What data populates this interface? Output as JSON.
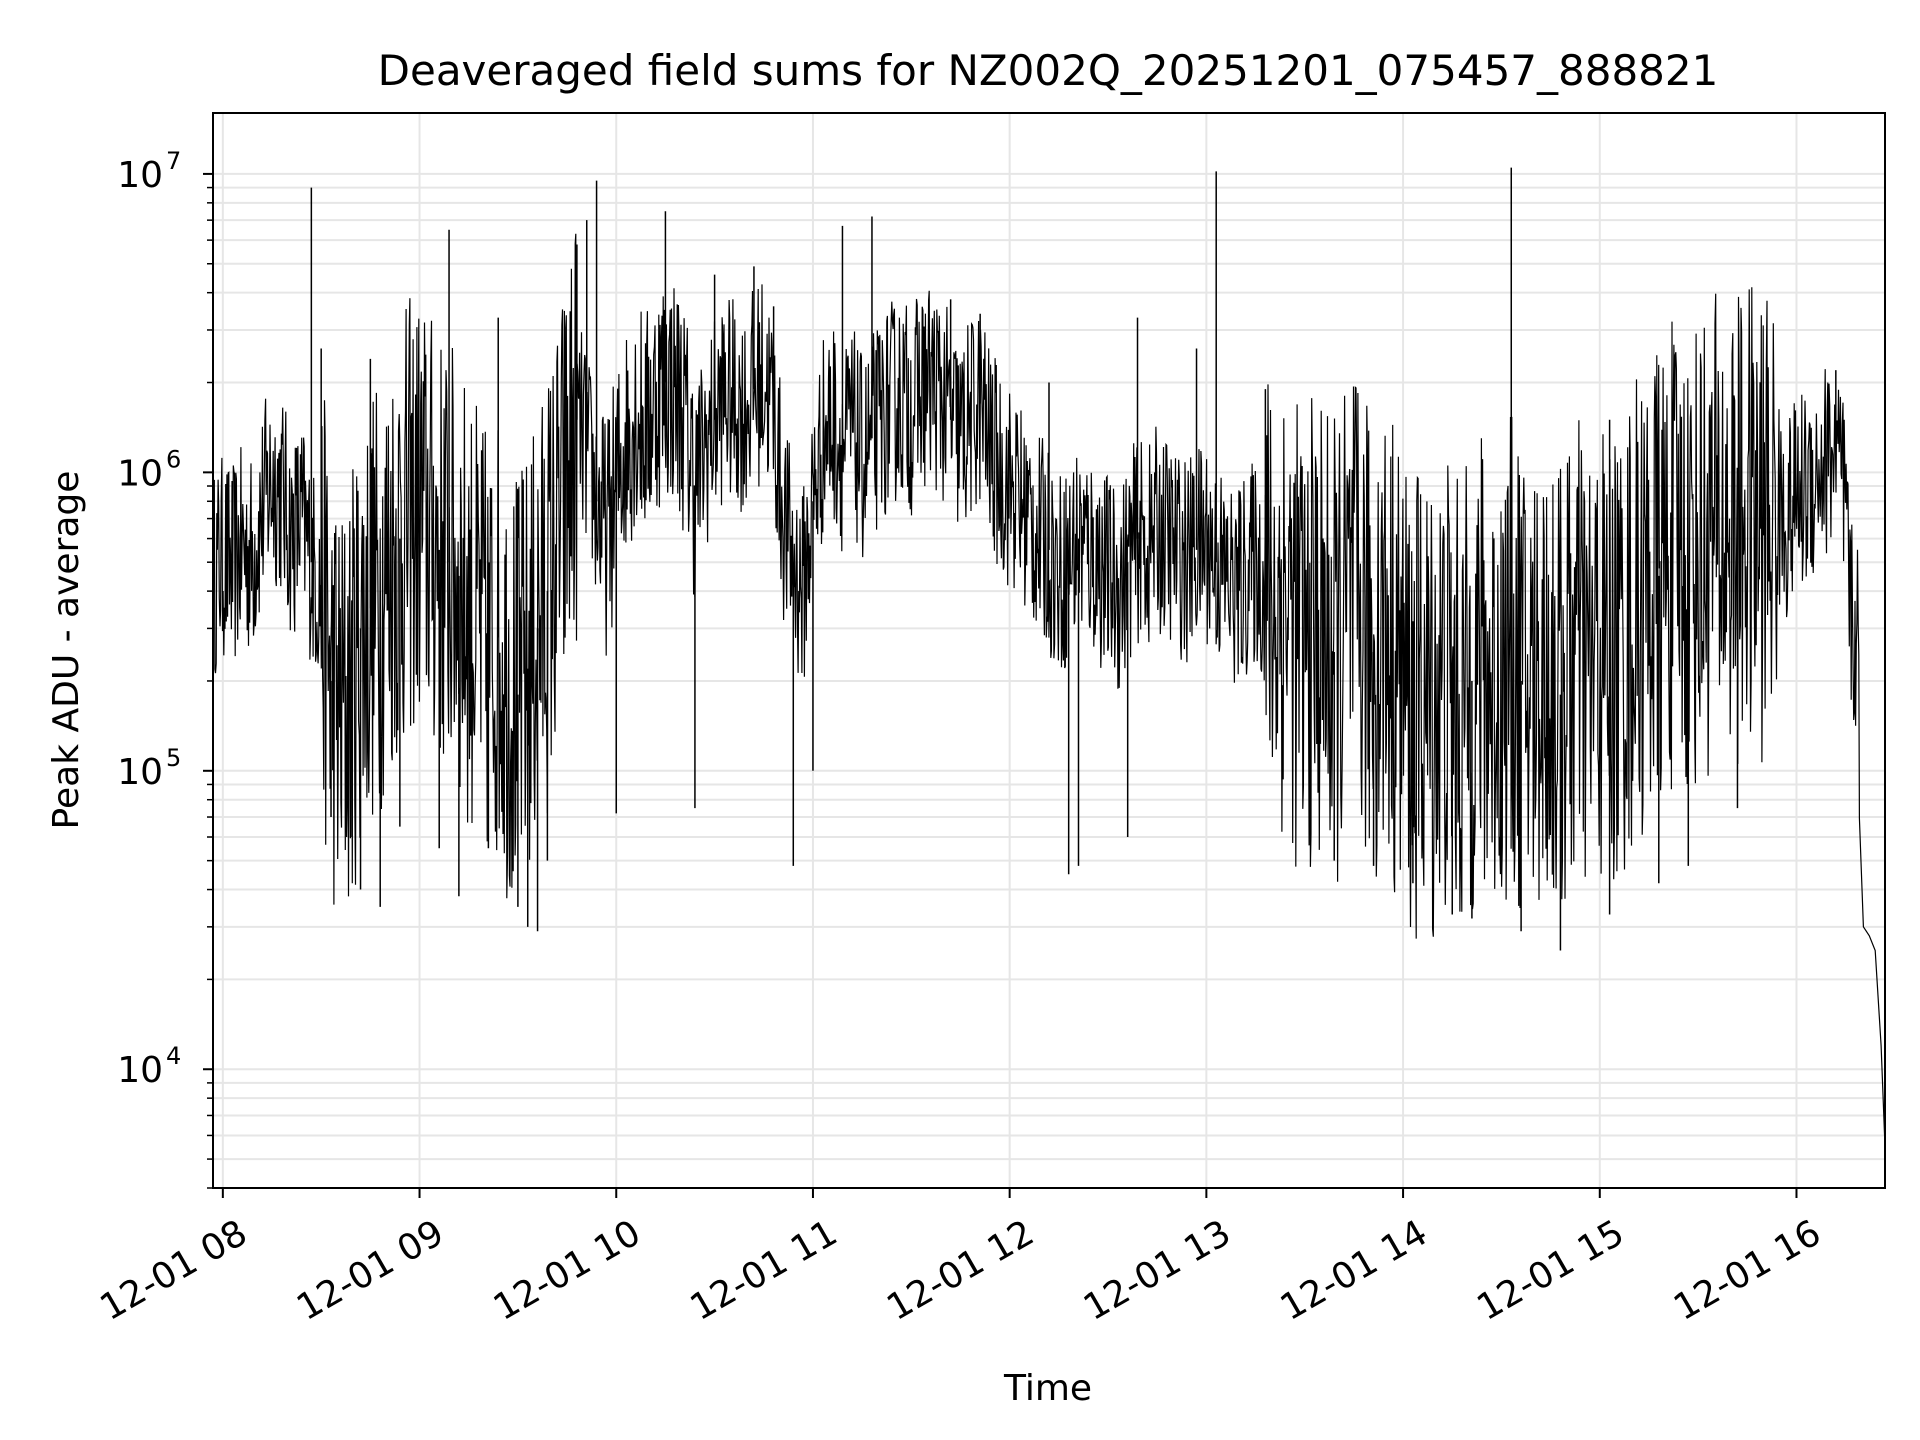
{
  "chart_data": {
    "type": "line",
    "title": "Deaveraged field sums for NZ002Q_20251201_075457_888821",
    "xlabel": "Time",
    "ylabel": "Peak ADU - average",
    "yscale": "log",
    "xlim": [
      7.95,
      16.45
    ],
    "ylim": [
      4000,
      16000000
    ],
    "grid": true,
    "line_color": "#000000",
    "grid_color": "#e6e6e6",
    "x_ticks": [
      {
        "value": 8,
        "label": "12-01 08"
      },
      {
        "value": 9,
        "label": "12-01 09"
      },
      {
        "value": 10,
        "label": "12-01 10"
      },
      {
        "value": 11,
        "label": "12-01 11"
      },
      {
        "value": 12,
        "label": "12-01 12"
      },
      {
        "value": 13,
        "label": "12-01 13"
      },
      {
        "value": 14,
        "label": "12-01 14"
      },
      {
        "value": 15,
        "label": "12-01 15"
      },
      {
        "value": 16,
        "label": "12-01 16"
      }
    ],
    "y_ticks": [
      {
        "value": 10000,
        "base": "10",
        "exp": "4"
      },
      {
        "value": 100000,
        "base": "10",
        "exp": "5"
      },
      {
        "value": 1000000,
        "base": "10",
        "exp": "6"
      },
      {
        "value": 10000000,
        "base": "10",
        "exp": "7"
      }
    ],
    "series": [
      {
        "points": [
          [
            7.95,
            450000
          ],
          [
            8.0,
            520000
          ],
          [
            8.05,
            480000
          ],
          [
            8.1,
            560000
          ],
          [
            8.15,
            520000
          ],
          [
            8.2,
            750000
          ],
          [
            8.25,
            950000
          ],
          [
            8.3,
            850000
          ],
          [
            8.35,
            600000
          ],
          [
            8.4,
            700000
          ],
          [
            8.45,
            500000
          ],
          [
            8.5,
            400000
          ],
          [
            8.55,
            200000
          ],
          [
            8.6,
            150000
          ],
          [
            8.65,
            180000
          ],
          [
            8.7,
            300000
          ],
          [
            8.75,
            350000
          ],
          [
            8.8,
            400000
          ],
          [
            8.85,
            500000
          ],
          [
            8.9,
            600000
          ],
          [
            8.95,
            700000
          ],
          [
            9.0,
            750000
          ],
          [
            9.05,
            650000
          ],
          [
            9.1,
            550000
          ],
          [
            9.15,
            500000
          ],
          [
            9.2,
            450000
          ],
          [
            9.25,
            350000
          ],
          [
            9.3,
            300000
          ],
          [
            9.35,
            250000
          ],
          [
            9.4,
            280000
          ],
          [
            9.45,
            200000
          ],
          [
            9.5,
            180000
          ],
          [
            9.55,
            220000
          ],
          [
            9.6,
            300000
          ],
          [
            9.65,
            400000
          ],
          [
            9.7,
            600000
          ],
          [
            9.75,
            900000
          ],
          [
            9.8,
            1500000
          ],
          [
            9.85,
            1200000
          ],
          [
            9.9,
            800000
          ],
          [
            9.95,
            600000
          ],
          [
            10.0,
            900000
          ],
          [
            10.05,
            1300000
          ],
          [
            10.1,
            1600000
          ],
          [
            10.15,
            1400000
          ],
          [
            10.2,
            1800000
          ],
          [
            10.25,
            2000000
          ],
          [
            10.3,
            1900000
          ],
          [
            10.35,
            1500000
          ],
          [
            10.4,
            900000
          ],
          [
            10.45,
            1200000
          ],
          [
            10.5,
            1500000
          ],
          [
            10.55,
            1800000
          ],
          [
            10.6,
            1700000
          ],
          [
            10.65,
            1600000
          ],
          [
            10.7,
            1900000
          ],
          [
            10.75,
            2100000
          ],
          [
            10.8,
            1600000
          ],
          [
            10.85,
            700000
          ],
          [
            10.9,
            500000
          ],
          [
            10.95,
            400000
          ],
          [
            11.0,
            800000
          ],
          [
            11.05,
            1300000
          ],
          [
            11.1,
            1500000
          ],
          [
            11.15,
            1200000
          ],
          [
            11.2,
            1400000
          ],
          [
            11.25,
            1100000
          ],
          [
            11.3,
            1300000
          ],
          [
            11.35,
            1500000
          ],
          [
            11.4,
            1700000
          ],
          [
            11.45,
            1800000
          ],
          [
            11.5,
            1600000
          ],
          [
            11.55,
            1900000
          ],
          [
            11.6,
            2000000
          ],
          [
            11.65,
            1800000
          ],
          [
            11.7,
            1500000
          ],
          [
            11.75,
            1300000
          ],
          [
            11.8,
            1500000
          ],
          [
            11.85,
            1700000
          ],
          [
            11.9,
            1200000
          ],
          [
            11.95,
            1000000
          ],
          [
            12.0,
            900000
          ],
          [
            12.05,
            800000
          ],
          [
            12.1,
            700000
          ],
          [
            12.15,
            600000
          ],
          [
            12.2,
            550000
          ],
          [
            12.25,
            450000
          ],
          [
            12.3,
            500000
          ],
          [
            12.35,
            600000
          ],
          [
            12.4,
            550000
          ],
          [
            12.45,
            500000
          ],
          [
            12.5,
            450000
          ],
          [
            12.55,
            400000
          ],
          [
            12.6,
            500000
          ],
          [
            12.65,
            600000
          ],
          [
            12.7,
            550000
          ],
          [
            12.75,
            650000
          ],
          [
            12.8,
            600000
          ],
          [
            12.85,
            550000
          ],
          [
            12.9,
            500000
          ],
          [
            12.95,
            550000
          ],
          [
            13.0,
            600000
          ],
          [
            13.05,
            500000
          ],
          [
            13.1,
            450000
          ],
          [
            13.15,
            400000
          ],
          [
            13.2,
            450000
          ],
          [
            13.25,
            500000
          ],
          [
            13.3,
            400000
          ],
          [
            13.35,
            350000
          ],
          [
            13.4,
            400000
          ],
          [
            13.45,
            300000
          ],
          [
            13.5,
            250000
          ],
          [
            13.55,
            300000
          ],
          [
            13.6,
            280000
          ],
          [
            13.65,
            250000
          ],
          [
            13.7,
            300000
          ],
          [
            13.75,
            350000
          ],
          [
            13.8,
            300000
          ],
          [
            13.85,
            250000
          ],
          [
            13.9,
            300000
          ],
          [
            13.95,
            250000
          ],
          [
            14.0,
            200000
          ],
          [
            14.05,
            150000
          ],
          [
            14.1,
            180000
          ],
          [
            14.15,
            160000
          ],
          [
            14.2,
            200000
          ],
          [
            14.25,
            180000
          ],
          [
            14.3,
            150000
          ],
          [
            14.35,
            200000
          ],
          [
            14.4,
            220000
          ],
          [
            14.45,
            180000
          ],
          [
            14.5,
            200000
          ],
          [
            14.55,
            250000
          ],
          [
            14.6,
            200000
          ],
          [
            14.65,
            180000
          ],
          [
            14.7,
            220000
          ],
          [
            14.75,
            200000
          ],
          [
            14.8,
            180000
          ],
          [
            14.85,
            220000
          ],
          [
            14.9,
            250000
          ],
          [
            14.95,
            200000
          ],
          [
            15.0,
            250000
          ],
          [
            15.05,
            220000
          ],
          [
            15.1,
            250000
          ],
          [
            15.15,
            300000
          ],
          [
            15.2,
            350000
          ],
          [
            15.25,
            400000
          ],
          [
            15.3,
            450000
          ],
          [
            15.35,
            500000
          ],
          [
            15.4,
            550000
          ],
          [
            15.45,
            500000
          ],
          [
            15.5,
            550000
          ],
          [
            15.55,
            600000
          ],
          [
            15.6,
            650000
          ],
          [
            15.65,
            600000
          ],
          [
            15.7,
            650000
          ],
          [
            15.75,
            700000
          ],
          [
            15.8,
            650000
          ],
          [
            15.85,
            700000
          ],
          [
            15.9,
            750000
          ],
          [
            15.95,
            700000
          ],
          [
            16.0,
            800000
          ],
          [
            16.05,
            900000
          ],
          [
            16.1,
            1000000
          ],
          [
            16.15,
            1100000
          ],
          [
            16.2,
            1200000
          ],
          [
            16.25,
            700000
          ],
          [
            16.28,
            300000
          ],
          [
            16.31,
            280000
          ],
          [
            16.34,
            30000
          ],
          [
            16.37,
            28000
          ],
          [
            16.4,
            25000
          ],
          [
            16.43,
            12000
          ],
          [
            16.45,
            5500
          ]
        ]
      }
    ],
    "spikes": [
      [
        8.45,
        9000000
      ],
      [
        8.5,
        2600000
      ],
      [
        8.75,
        2400000
      ],
      [
        9.15,
        6500000
      ],
      [
        9.4,
        3300000
      ],
      [
        9.8,
        5800000
      ],
      [
        9.85,
        7000000
      ],
      [
        9.9,
        9500000
      ],
      [
        10.25,
        7500000
      ],
      [
        10.5,
        4600000
      ],
      [
        10.7,
        4900000
      ],
      [
        10.8,
        3600000
      ],
      [
        11.15,
        6700000
      ],
      [
        11.3,
        7200000
      ],
      [
        11.7,
        3800000
      ],
      [
        11.85,
        3400000
      ],
      [
        12.2,
        2000000
      ],
      [
        12.65,
        3300000
      ],
      [
        12.95,
        2600000
      ],
      [
        13.05,
        10200000
      ],
      [
        13.3,
        1900000
      ],
      [
        14.55,
        10500000
      ],
      [
        15.05,
        1500000
      ],
      [
        16.2,
        2200000
      ]
    ],
    "dips": [
      [
        8.55,
        70000
      ],
      [
        8.65,
        60000
      ],
      [
        8.7,
        40000
      ],
      [
        8.8,
        35000
      ],
      [
        8.9,
        65000
      ],
      [
        9.1,
        55000
      ],
      [
        9.2,
        38000
      ],
      [
        9.35,
        55000
      ],
      [
        9.5,
        35000
      ],
      [
        9.55,
        30000
      ],
      [
        9.65,
        50000
      ],
      [
        9.6,
        29000
      ],
      [
        10.0,
        72000
      ],
      [
        10.4,
        75000
      ],
      [
        10.9,
        48000
      ],
      [
        11.0,
        100000
      ],
      [
        12.3,
        45000
      ],
      [
        12.35,
        48000
      ],
      [
        12.6,
        60000
      ],
      [
        13.65,
        50000
      ],
      [
        13.85,
        48000
      ],
      [
        14.05,
        42000
      ],
      [
        14.25,
        33000
      ],
      [
        14.35,
        32000
      ],
      [
        14.6,
        29000
      ],
      [
        14.8,
        25000
      ],
      [
        15.05,
        33000
      ],
      [
        15.3,
        42000
      ],
      [
        15.45,
        48000
      ],
      [
        15.7,
        75000
      ]
    ]
  }
}
